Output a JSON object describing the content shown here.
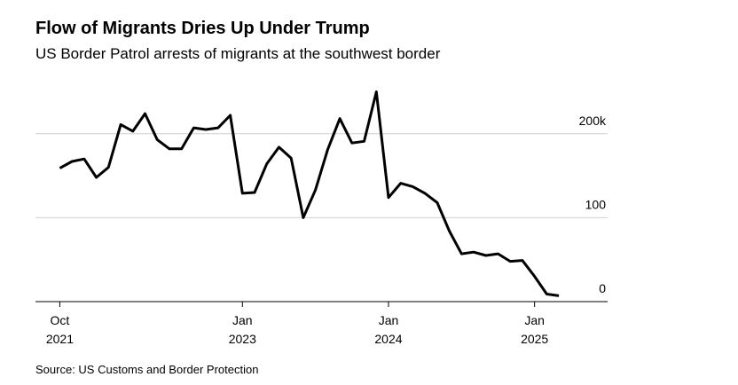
{
  "chart_data": {
    "type": "line",
    "title": "Flow of Migrants Dries Up Under Trump",
    "subtitle": "US Border Patrol arrests of migrants at the southwest border",
    "source": "Source: US Customs and Border Protection",
    "x": [
      "2021-10",
      "2021-11",
      "2021-12",
      "2022-01",
      "2022-02",
      "2022-03",
      "2022-04",
      "2022-05",
      "2022-06",
      "2022-07",
      "2022-08",
      "2022-09",
      "2022-10",
      "2022-11",
      "2022-12",
      "2023-01",
      "2023-02",
      "2023-03",
      "2023-04",
      "2023-05",
      "2023-06",
      "2023-07",
      "2023-08",
      "2023-09",
      "2023-10",
      "2023-11",
      "2023-12",
      "2024-01",
      "2024-02",
      "2024-03",
      "2024-04",
      "2024-05",
      "2024-06",
      "2024-07",
      "2024-08",
      "2024-09",
      "2024-10",
      "2024-11",
      "2024-12",
      "2025-01",
      "2025-02",
      "2025-03"
    ],
    "series": [
      {
        "name": "Arrests",
        "color": "#000000",
        "values": [
          159,
          167,
          170,
          148,
          160,
          211,
          203,
          224,
          193,
          182,
          182,
          207,
          205,
          207,
          222,
          129,
          130,
          164,
          184,
          171,
          100,
          133,
          181,
          218,
          189,
          191,
          250,
          124,
          141,
          137,
          129,
          118,
          84,
          57,
          59,
          55,
          57,
          48,
          49,
          30,
          9,
          7
        ]
      }
    ],
    "xlim": [
      "2021-08",
      "2025-07"
    ],
    "xticks": [
      {
        "value": "2021-10",
        "label": "Oct 2021"
      },
      {
        "value": "2023-01",
        "label": "Jan 2023"
      },
      {
        "value": "2024-01",
        "label": "Jan 2024"
      },
      {
        "value": "2025-01",
        "label": "Jan 2025"
      }
    ],
    "ylim": [
      0,
      260
    ],
    "yticks": [
      0,
      100,
      {
        "value": 200,
        "label": "200k"
      }
    ],
    "grid": true
  }
}
